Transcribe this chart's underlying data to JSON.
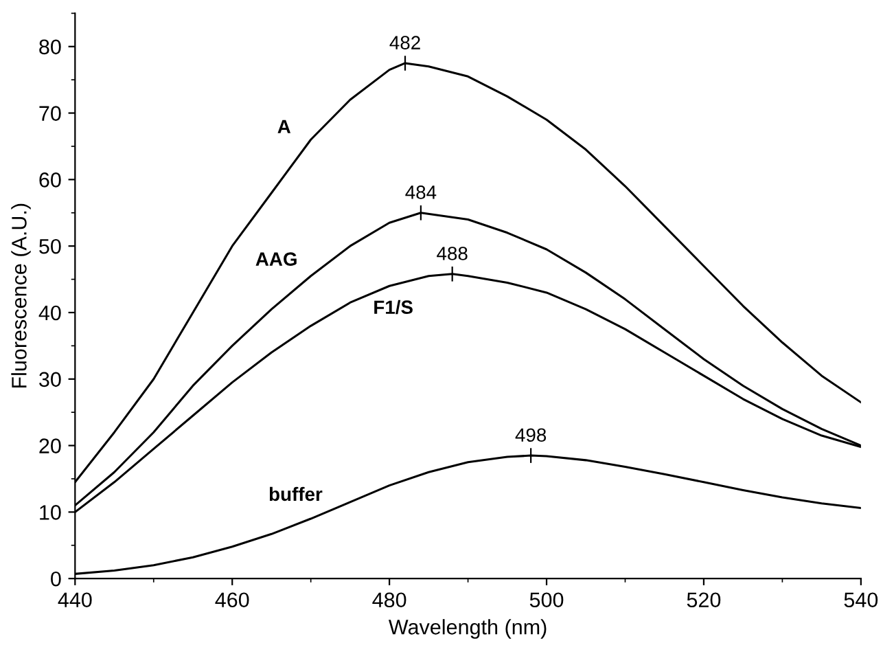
{
  "chart_data": {
    "type": "line",
    "xlabel": "Wavelength (nm)",
    "ylabel": "Fluorescence (A.U.)",
    "xlim": [
      440,
      540
    ],
    "ylim": [
      0,
      85
    ],
    "xticks": [
      440,
      460,
      480,
      500,
      520,
      540
    ],
    "yticks": [
      0,
      10,
      20,
      30,
      40,
      50,
      60,
      70,
      80
    ],
    "grid": false,
    "legend": false,
    "line_style": "solid",
    "marker": "none",
    "series": [
      {
        "name": "A",
        "color": "#000000",
        "x": [
          440,
          445,
          450,
          455,
          460,
          465,
          470,
          475,
          480,
          482,
          485,
          490,
          495,
          500,
          505,
          510,
          515,
          520,
          525,
          530,
          535,
          540
        ],
        "values": [
          14.5,
          22,
          30,
          40,
          50,
          58,
          66,
          72,
          76.5,
          77.5,
          77,
          75.5,
          72.5,
          69,
          64.5,
          59,
          53,
          47,
          41,
          35.5,
          30.5,
          26.5
        ]
      },
      {
        "name": "AAG",
        "color": "#000000",
        "x": [
          440,
          445,
          450,
          455,
          460,
          465,
          470,
          475,
          480,
          484,
          490,
          495,
          500,
          505,
          510,
          515,
          520,
          525,
          530,
          535,
          540
        ],
        "values": [
          11,
          16,
          22,
          29,
          35,
          40.5,
          45.5,
          50,
          53.5,
          55,
          54,
          52,
          49.5,
          46,
          42,
          37.5,
          33,
          29,
          25.5,
          22.5,
          20
        ]
      },
      {
        "name": "F1/S",
        "color": "#000000",
        "x": [
          440,
          445,
          450,
          455,
          460,
          465,
          470,
          475,
          480,
          485,
          488,
          490,
          495,
          500,
          505,
          510,
          515,
          520,
          525,
          530,
          535,
          540
        ],
        "values": [
          10,
          14.5,
          19.5,
          24.5,
          29.5,
          34,
          38,
          41.5,
          44,
          45.5,
          45.8,
          45.5,
          44.5,
          43,
          40.5,
          37.5,
          34,
          30.5,
          27,
          24,
          21.5,
          19.8
        ]
      },
      {
        "name": "buffer",
        "color": "#000000",
        "x": [
          440,
          445,
          450,
          455,
          460,
          465,
          470,
          475,
          480,
          485,
          490,
          495,
          498,
          500,
          505,
          510,
          515,
          520,
          525,
          530,
          535,
          540
        ],
        "values": [
          0.7,
          1.2,
          2,
          3.2,
          4.8,
          6.7,
          9,
          11.5,
          14,
          16,
          17.5,
          18.3,
          18.5,
          18.4,
          17.8,
          16.8,
          15.7,
          14.5,
          13.3,
          12.2,
          11.3,
          10.6
        ]
      }
    ],
    "annotations": [
      {
        "text": "482",
        "x": 482,
        "y": 77.5
      },
      {
        "text": "484",
        "x": 484,
        "y": 55
      },
      {
        "text": "488",
        "x": 488,
        "y": 45.8
      },
      {
        "text": "498",
        "x": 498,
        "y": 18.5
      }
    ]
  }
}
